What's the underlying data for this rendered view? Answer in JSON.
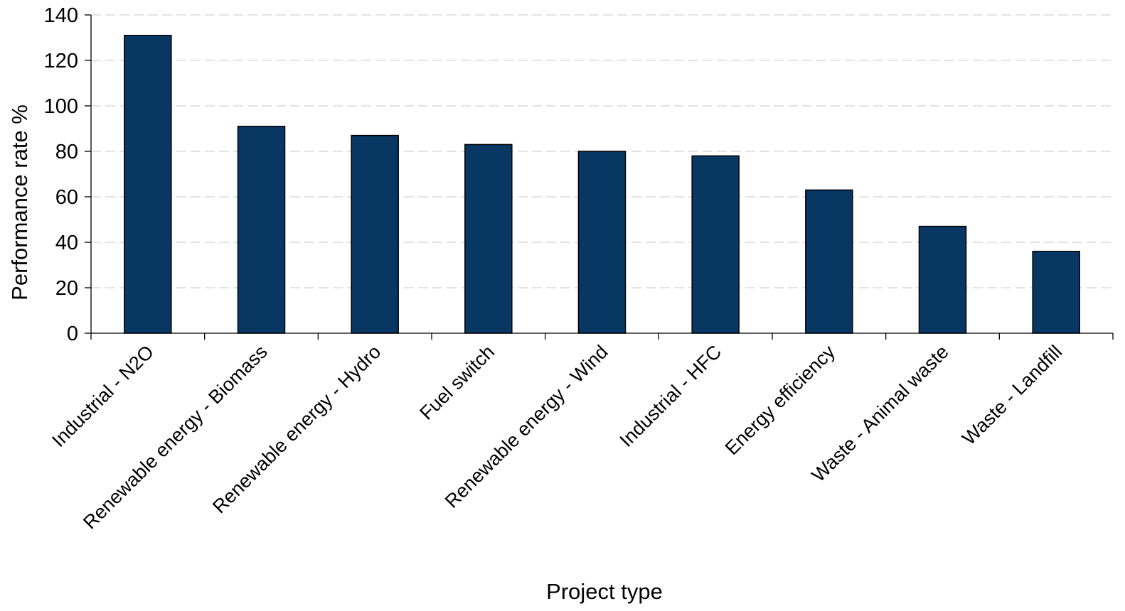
{
  "colors": {
    "bar_fill": "#083763",
    "bar_stroke": "#000000",
    "grid": "#c8c8c8",
    "axis": "#000000"
  },
  "chart_data": {
    "type": "bar",
    "categories": [
      "Industrial - N2O",
      "Renewable energy - Biomass",
      "Renewable energy - Hydro",
      "Fuel switch",
      "Renewable energy - Wind",
      "Industrial - HFC",
      "Energy efficiency",
      "Waste - Animal waste",
      "Waste - Landfill"
    ],
    "values": [
      131,
      91,
      87,
      83,
      80,
      78,
      63,
      47,
      36
    ],
    "xlabel": "Project type",
    "ylabel": "Performance rate %",
    "ylim": [
      0,
      140
    ],
    "yticks": [
      "0",
      "20",
      "40",
      "60",
      "80",
      "100",
      "120",
      "140"
    ],
    "grid": "horizontal dashed",
    "legend": "none"
  }
}
